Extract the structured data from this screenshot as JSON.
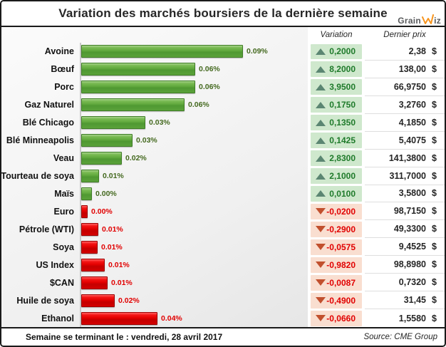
{
  "title": "Variation des marchés boursiers de la dernière semaine",
  "logo": {
    "part1": "Grain",
    "part2": "iz",
    "mark": "w-zigzag-icon",
    "accent_color": "#F7941D"
  },
  "columns": {
    "variation": "Variation",
    "last_price": "Dernier prix"
  },
  "footer": {
    "week_ending": "Semaine se terminant le : vendredi, 28 avril 2017",
    "source": "Source: CME Group"
  },
  "colors": {
    "bar_up": "#61A93E",
    "bar_down": "#E30000",
    "cell_up_bg": "#CFE8CD",
    "cell_down_bg": "#F9DED0",
    "triangle_up": "#5B8672",
    "triangle_down": "#C1502E",
    "pct_up_text": "#44691F",
    "pct_down_text": "#E10000"
  },
  "chart_data": {
    "type": "bar",
    "orientation": "horizontal",
    "title": "Variation des marchés boursiers de la dernière semaine",
    "legend": "none",
    "grid": false,
    "rows": [
      {
        "label": "Avoine",
        "pct_label": "0.09%",
        "direction": "up",
        "variation": "0,2000",
        "price": "2,38",
        "currency": "$",
        "bar": 1.0
      },
      {
        "label": "Bœuf",
        "pct_label": "0.06%",
        "direction": "up",
        "variation": "8,2000",
        "price": "138,00",
        "currency": "$",
        "bar": 0.7
      },
      {
        "label": "Porc",
        "pct_label": "0.06%",
        "direction": "up",
        "variation": "3,9500",
        "price": "66,9750",
        "currency": "$",
        "bar": 0.7
      },
      {
        "label": "Gaz Naturel",
        "pct_label": "0.06%",
        "direction": "up",
        "variation": "0,1750",
        "price": "3,2760",
        "currency": "$",
        "bar": 0.635
      },
      {
        "label": "Blé Chicago",
        "pct_label": "0.03%",
        "direction": "up",
        "variation": "0,1350",
        "price": "4,1850",
        "currency": "$",
        "bar": 0.39
      },
      {
        "label": "Blé Minneapolis",
        "pct_label": "0.03%",
        "direction": "up",
        "variation": "0,1425",
        "price": "5,4075",
        "currency": "$",
        "bar": 0.31
      },
      {
        "label": "Veau",
        "pct_label": "0.02%",
        "direction": "up",
        "variation": "2,8300",
        "price": "141,3800",
        "currency": "$",
        "bar": 0.245
      },
      {
        "label": "Tourteau de soya",
        "pct_label": "0.01%",
        "direction": "up",
        "variation": "2,1000",
        "price": "311,7000",
        "currency": "$",
        "bar": 0.1
      },
      {
        "label": "Maïs",
        "pct_label": "0.00%",
        "direction": "up",
        "variation": "0,0100",
        "price": "3,5800",
        "currency": "$",
        "bar": 0.058
      },
      {
        "label": "Euro",
        "pct_label": "0.00%",
        "direction": "down",
        "variation": "-0,0200",
        "price": "98,7150",
        "currency": "$",
        "bar": 0.031
      },
      {
        "label": "Pétrole (WTI)",
        "pct_label": "0.01%",
        "direction": "down",
        "variation": "-0,2900",
        "price": "49,3300",
        "currency": "$",
        "bar": 0.098
      },
      {
        "label": "Soya",
        "pct_label": "0.01%",
        "direction": "down",
        "variation": "-0,0575",
        "price": "9,4525",
        "currency": "$",
        "bar": 0.093
      },
      {
        "label": "US Index",
        "pct_label": "0.01%",
        "direction": "down",
        "variation": "-0,9820",
        "price": "98,8980",
        "currency": "$",
        "bar": 0.138
      },
      {
        "label": "$CAN",
        "pct_label": "0.01%",
        "direction": "down",
        "variation": "-0,0087",
        "price": "0,7320",
        "currency": "$",
        "bar": 0.156
      },
      {
        "label": "Huile de soya",
        "pct_label": "0.02%",
        "direction": "down",
        "variation": "-0,4900",
        "price": "31,45",
        "currency": "$",
        "bar": 0.2
      },
      {
        "label": "Ethanol",
        "pct_label": "0.04%",
        "direction": "down",
        "variation": "-0,0660",
        "price": "1,5580",
        "currency": "$",
        "bar": 0.467
      }
    ]
  }
}
